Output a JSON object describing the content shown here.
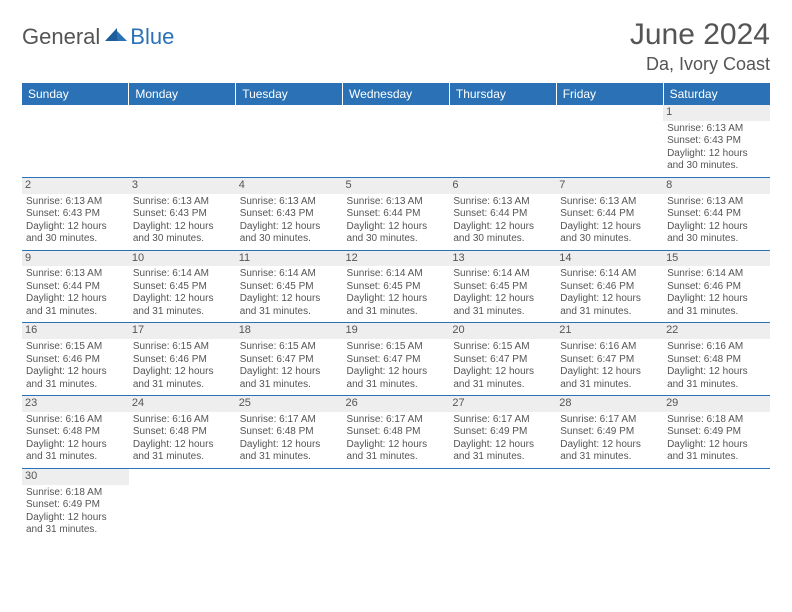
{
  "brand": {
    "part1": "General",
    "part2": "Blue"
  },
  "title": "June 2024",
  "location": "Da, Ivory Coast",
  "colors": {
    "header_bg": "#2a72b5",
    "header_fg": "#ffffff",
    "daynum_bg": "#eeeeee",
    "text": "#555555",
    "rule": "#2a72b5"
  },
  "day_headers": [
    "Sunday",
    "Monday",
    "Tuesday",
    "Wednesday",
    "Thursday",
    "Friday",
    "Saturday"
  ],
  "weeks": [
    [
      null,
      null,
      null,
      null,
      null,
      null,
      {
        "n": 1,
        "rise": "6:13 AM",
        "set": "6:43 PM",
        "dl": "12 hours and 30 minutes."
      }
    ],
    [
      {
        "n": 2,
        "rise": "6:13 AM",
        "set": "6:43 PM",
        "dl": "12 hours and 30 minutes."
      },
      {
        "n": 3,
        "rise": "6:13 AM",
        "set": "6:43 PM",
        "dl": "12 hours and 30 minutes."
      },
      {
        "n": 4,
        "rise": "6:13 AM",
        "set": "6:43 PM",
        "dl": "12 hours and 30 minutes."
      },
      {
        "n": 5,
        "rise": "6:13 AM",
        "set": "6:44 PM",
        "dl": "12 hours and 30 minutes."
      },
      {
        "n": 6,
        "rise": "6:13 AM",
        "set": "6:44 PM",
        "dl": "12 hours and 30 minutes."
      },
      {
        "n": 7,
        "rise": "6:13 AM",
        "set": "6:44 PM",
        "dl": "12 hours and 30 minutes."
      },
      {
        "n": 8,
        "rise": "6:13 AM",
        "set": "6:44 PM",
        "dl": "12 hours and 30 minutes."
      }
    ],
    [
      {
        "n": 9,
        "rise": "6:13 AM",
        "set": "6:44 PM",
        "dl": "12 hours and 31 minutes."
      },
      {
        "n": 10,
        "rise": "6:14 AM",
        "set": "6:45 PM",
        "dl": "12 hours and 31 minutes."
      },
      {
        "n": 11,
        "rise": "6:14 AM",
        "set": "6:45 PM",
        "dl": "12 hours and 31 minutes."
      },
      {
        "n": 12,
        "rise": "6:14 AM",
        "set": "6:45 PM",
        "dl": "12 hours and 31 minutes."
      },
      {
        "n": 13,
        "rise": "6:14 AM",
        "set": "6:45 PM",
        "dl": "12 hours and 31 minutes."
      },
      {
        "n": 14,
        "rise": "6:14 AM",
        "set": "6:46 PM",
        "dl": "12 hours and 31 minutes."
      },
      {
        "n": 15,
        "rise": "6:14 AM",
        "set": "6:46 PM",
        "dl": "12 hours and 31 minutes."
      }
    ],
    [
      {
        "n": 16,
        "rise": "6:15 AM",
        "set": "6:46 PM",
        "dl": "12 hours and 31 minutes."
      },
      {
        "n": 17,
        "rise": "6:15 AM",
        "set": "6:46 PM",
        "dl": "12 hours and 31 minutes."
      },
      {
        "n": 18,
        "rise": "6:15 AM",
        "set": "6:47 PM",
        "dl": "12 hours and 31 minutes."
      },
      {
        "n": 19,
        "rise": "6:15 AM",
        "set": "6:47 PM",
        "dl": "12 hours and 31 minutes."
      },
      {
        "n": 20,
        "rise": "6:15 AM",
        "set": "6:47 PM",
        "dl": "12 hours and 31 minutes."
      },
      {
        "n": 21,
        "rise": "6:16 AM",
        "set": "6:47 PM",
        "dl": "12 hours and 31 minutes."
      },
      {
        "n": 22,
        "rise": "6:16 AM",
        "set": "6:48 PM",
        "dl": "12 hours and 31 minutes."
      }
    ],
    [
      {
        "n": 23,
        "rise": "6:16 AM",
        "set": "6:48 PM",
        "dl": "12 hours and 31 minutes."
      },
      {
        "n": 24,
        "rise": "6:16 AM",
        "set": "6:48 PM",
        "dl": "12 hours and 31 minutes."
      },
      {
        "n": 25,
        "rise": "6:17 AM",
        "set": "6:48 PM",
        "dl": "12 hours and 31 minutes."
      },
      {
        "n": 26,
        "rise": "6:17 AM",
        "set": "6:48 PM",
        "dl": "12 hours and 31 minutes."
      },
      {
        "n": 27,
        "rise": "6:17 AM",
        "set": "6:49 PM",
        "dl": "12 hours and 31 minutes."
      },
      {
        "n": 28,
        "rise": "6:17 AM",
        "set": "6:49 PM",
        "dl": "12 hours and 31 minutes."
      },
      {
        "n": 29,
        "rise": "6:18 AM",
        "set": "6:49 PM",
        "dl": "12 hours and 31 minutes."
      }
    ],
    [
      {
        "n": 30,
        "rise": "6:18 AM",
        "set": "6:49 PM",
        "dl": "12 hours and 31 minutes."
      },
      null,
      null,
      null,
      null,
      null,
      null
    ]
  ],
  "labels": {
    "sunrise": "Sunrise: ",
    "sunset": "Sunset: ",
    "daylight": "Daylight: "
  }
}
